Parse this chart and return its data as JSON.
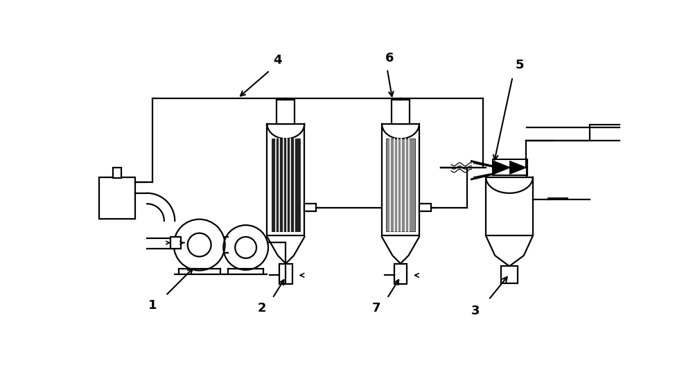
{
  "bg_color": "#ffffff",
  "lc": "#000000",
  "lw": 1.6,
  "label_fontsize": 13,
  "label_fontweight": "bold"
}
